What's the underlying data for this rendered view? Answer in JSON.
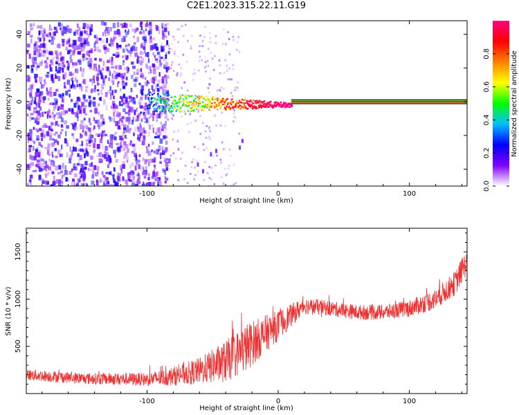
{
  "title": "C2E1.2023.315.22.11.G19",
  "chart_data": [
    {
      "type": "heatmap",
      "xlabel": "Height of straight line (km)",
      "ylabel": "Frequency (Hz)",
      "xlim": [
        -192,
        144
      ],
      "ylim": [
        -50,
        48
      ],
      "x_ticks": [
        -100,
        0,
        100
      ],
      "y_ticks": [
        -40,
        -20,
        0,
        20,
        40
      ],
      "colorbar": {
        "label": "Normalized spectral amplitude",
        "range": [
          0.0,
          1.0
        ],
        "ticks": [
          0.0,
          0.2,
          0.4,
          0.6,
          0.8
        ],
        "tick_labels": [
          "0.0",
          "0.2",
          "0.4",
          "0.6",
          "0.8"
        ],
        "colormap": [
          "#ffffff",
          "#8000ff",
          "#0000ff",
          "#00c0ff",
          "#00ff00",
          "#ffff00",
          "#ff8000",
          "#ff0000",
          "#ff0080"
        ]
      },
      "features": {
        "noise_region_x": [
          -192,
          -88
        ],
        "sparse_region_x": [
          -88,
          -30
        ],
        "signal_start_x": -100,
        "signal_saturated_from_x": 10,
        "signal_frequency_hz": 0
      }
    },
    {
      "type": "line",
      "xlabel": "Height of straight line (km)",
      "ylabel": "SNR (10 * v/v)",
      "xlim": [
        -192,
        144
      ],
      "ylim": [
        0,
        1750
      ],
      "x_ticks": [
        -100,
        0,
        100
      ],
      "y_ticks": [
        500,
        1000,
        1500
      ],
      "line_color": "#f03030",
      "trend_x": [
        -192,
        -150,
        -100,
        -85,
        -60,
        -40,
        -25,
        -10,
        0,
        10,
        20,
        40,
        60,
        80,
        100,
        120,
        135,
        144
      ],
      "trend_y": [
        200,
        160,
        150,
        170,
        240,
        340,
        480,
        630,
        720,
        830,
        930,
        900,
        860,
        860,
        900,
        1000,
        1170,
        1400
      ],
      "noise_amplitude": [
        60,
        60,
        70,
        90,
        140,
        220,
        260,
        200,
        160,
        120,
        90,
        80,
        80,
        80,
        90,
        110,
        130,
        140
      ]
    }
  ]
}
